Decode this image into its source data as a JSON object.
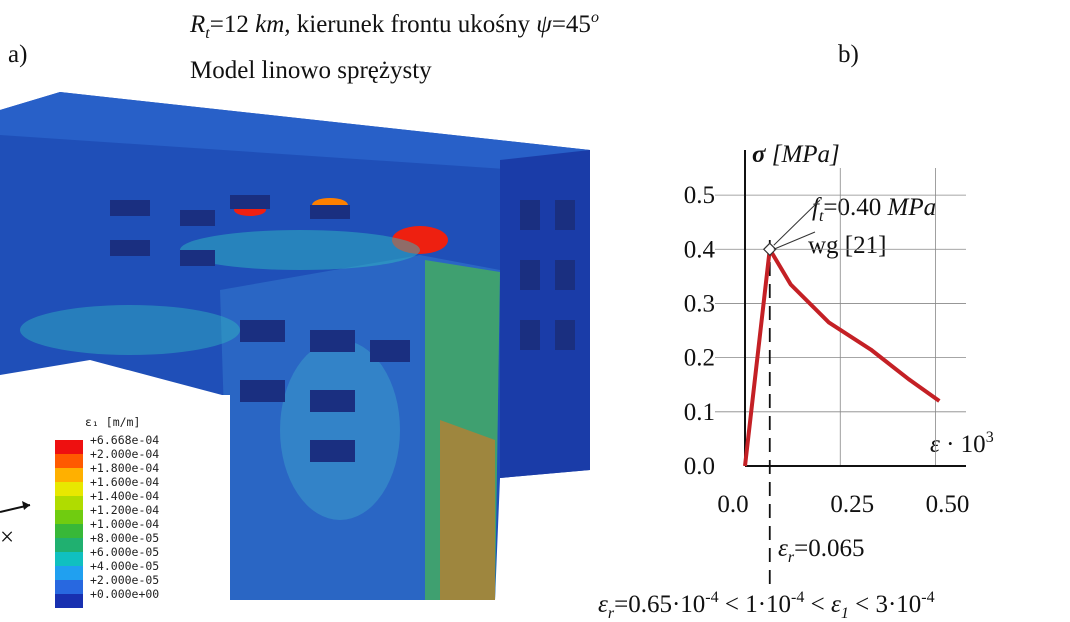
{
  "header": {
    "line1": {
      "r": "R",
      "r_sub": "t",
      "r_rest": "=12 ",
      "km": "km,",
      "mid": " kierunek frontu ukośny ",
      "psi": "ψ",
      "psi_rest": "=45",
      "sup": "o"
    },
    "line2": "Model linowo sprężysty"
  },
  "panel_a": "a)",
  "panel_b": "b)",
  "legend": {
    "title": "ε₁ [m/m]",
    "labels": [
      "+6.668e-04",
      "+2.000e-04",
      "+1.800e-04",
      "+1.600e-04",
      "+1.400e-04",
      "+1.200e-04",
      "+1.000e-04",
      "+8.000e-05",
      "+6.000e-05",
      "+4.000e-05",
      "+2.000e-05",
      "+0.000e+00"
    ],
    "colors": [
      "#ee1010",
      "#ff5a00",
      "#ffb000",
      "#e8e800",
      "#b0dc00",
      "#70cc10",
      "#38b838",
      "#20b070",
      "#10c0c0",
      "#20a0f0",
      "#2868e0",
      "#1830b0"
    ]
  },
  "triad_label": "×",
  "chart_data": {
    "type": "line",
    "y_label": {
      "sym": "σ",
      "unit": " [MPa]"
    },
    "x_label": {
      "sym": "ε",
      "dot": " · 10",
      "sup": "3"
    },
    "x": [
      0,
      0.065,
      0.12,
      0.22,
      0.33,
      0.43,
      0.51
    ],
    "series": [
      {
        "color": "#c42025",
        "values": [
          0,
          0.4,
          0.335,
          0.265,
          0.215,
          0.16,
          0.12
        ]
      }
    ],
    "xlim": [
      0,
      0.58
    ],
    "ylim": [
      0,
      0.55
    ],
    "xticks": [
      {
        "value": 0,
        "label": "0.0"
      },
      0.25,
      {
        "value": 0.5,
        "label": "0.50"
      }
    ],
    "yticks": [
      {
        "value": 0,
        "label": "0.0"
      },
      0.1,
      0.2,
      0.3,
      0.4,
      0.5
    ],
    "grid": true,
    "threshold_x": 0.065,
    "ft_label": {
      "f": "f",
      "sub": "t",
      "rest": "=0.40 ",
      "unit": "MPa"
    },
    "ref_label": "wg [21]",
    "er_label": {
      "e": "ε",
      "sub": "r",
      "rest": "=0.065"
    },
    "inequality": {
      "e1": "ε",
      "s1": "r",
      "p1": "=0.65·10",
      "x1": "-4",
      "p2": " < 1·10",
      "x2": "-4",
      "p3": " < ",
      "e2": "ε",
      "s2": "1",
      "p4": " < 3·10",
      "x3": "-4"
    }
  }
}
